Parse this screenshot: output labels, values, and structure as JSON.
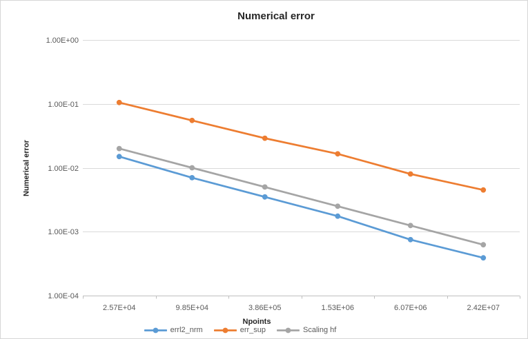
{
  "chart_data": {
    "type": "line",
    "title": "Numerical error",
    "xlabel": "Npoints",
    "ylabel": "Numerical error",
    "x_scale": "category",
    "y_scale": "log",
    "ylim": [
      0.0001,
      1.0
    ],
    "y_tick_labels": [
      "1.00E+00",
      "1.00E-01",
      "1.00E-02",
      "1.00E-03",
      "1.00E-04"
    ],
    "categories": [
      "2.57E+04",
      "9.85E+04",
      "3.86E+05",
      "1.53E+06",
      "6.07E+06",
      "2.42E+07"
    ],
    "series": [
      {
        "name": "errl2_nrm",
        "color": "#5B9BD5",
        "marker": "circle",
        "values": [
          0.015,
          0.007,
          0.0035,
          0.00175,
          0.00075,
          0.00039
        ]
      },
      {
        "name": "err_sup",
        "color": "#ED7D31",
        "marker": "circle",
        "values": [
          0.105,
          0.055,
          0.029,
          0.0165,
          0.008,
          0.0045
        ]
      },
      {
        "name": "Scaling hf",
        "color": "#A5A5A5",
        "marker": "circle",
        "values": [
          0.02,
          0.01,
          0.005,
          0.0025,
          0.00125,
          0.000625
        ]
      }
    ],
    "legend_position": "bottom",
    "grid": "horizontal",
    "style": {
      "gridline_color": "#D9D9D9",
      "axis_line_color": "#BFBFBF",
      "tick_label_color": "#595959",
      "title_color": "#262626"
    }
  }
}
